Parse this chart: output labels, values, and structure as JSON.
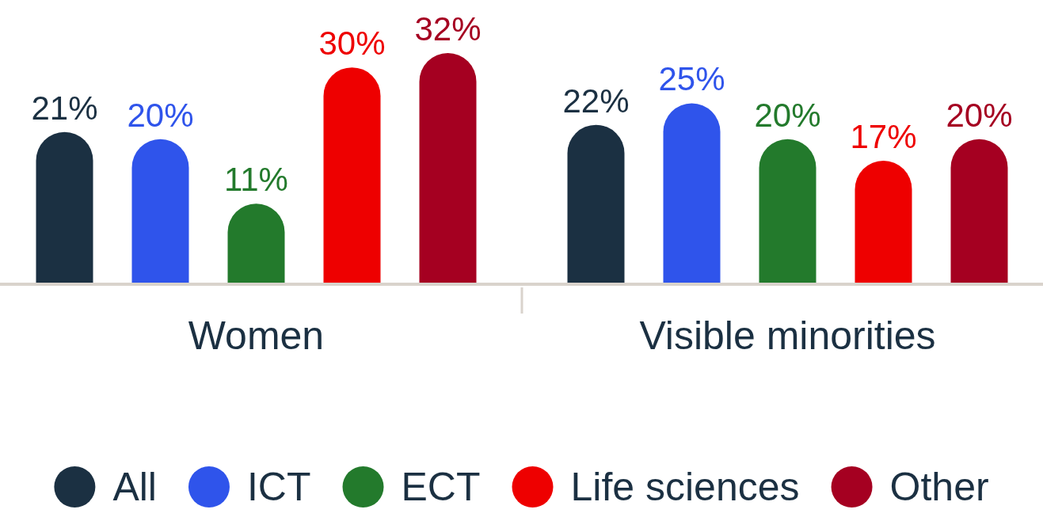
{
  "chart_data": {
    "type": "bar",
    "categories": [
      "Women",
      "Visible minorities"
    ],
    "series": [
      {
        "name": "All",
        "color": "#1b3042",
        "values": [
          21,
          22
        ],
        "value_labels": [
          "21%",
          "22%"
        ]
      },
      {
        "name": "ICT",
        "color": "#2f54eb",
        "values": [
          20,
          25
        ],
        "value_labels": [
          "20%",
          "25%"
        ]
      },
      {
        "name": "ECT",
        "color": "#237a2c",
        "values": [
          11,
          20
        ],
        "value_labels": [
          "11%",
          "20%"
        ]
      },
      {
        "name": "Life sciences",
        "color": "#ee0000",
        "values": [
          30,
          17
        ],
        "value_labels": [
          "30%",
          "17%"
        ]
      },
      {
        "name": "Other",
        "color": "#a50021",
        "values": [
          32,
          20
        ],
        "value_labels": [
          "32%",
          "20%"
        ]
      }
    ],
    "legend": "bottom"
  }
}
